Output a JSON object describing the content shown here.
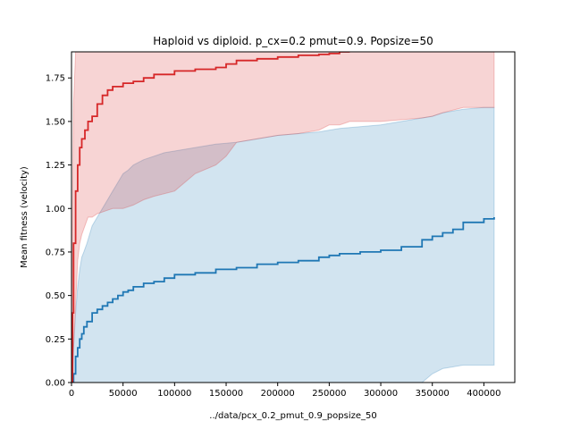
{
  "chart_data": {
    "type": "line",
    "title": "Haploid vs diploid. p_cx=0.2 pmut=0.9. Popsize=50",
    "xlabel": "../data/pcx_0.2_pmut_0.9_popsize_50",
    "ylabel": "Mean fitness (velocity)",
    "xlim": [
      0,
      430000
    ],
    "ylim": [
      0,
      1.9
    ],
    "grid": false,
    "x_ticks": [
      0,
      50000,
      100000,
      150000,
      200000,
      250000,
      300000,
      350000,
      400000
    ],
    "x_tick_labels": [
      "0",
      "50000",
      "100000",
      "150000",
      "200000",
      "250000",
      "300000",
      "350000",
      "400000"
    ],
    "y_ticks": [
      0.0,
      0.25,
      0.5,
      0.75,
      1.0,
      1.25,
      1.5,
      1.75
    ],
    "y_tick_labels": [
      "0.00",
      "0.25",
      "0.50",
      "0.75",
      "1.00",
      "1.25",
      "1.50",
      "1.75"
    ],
    "series": [
      {
        "color": "#d62728",
        "fill_color": "#d62728",
        "x": [
          0,
          1000,
          2000,
          4000,
          6000,
          8000,
          10000,
          13000,
          16000,
          20000,
          25000,
          30000,
          35000,
          40000,
          50000,
          60000,
          70000,
          80000,
          100000,
          120000,
          140000,
          150000,
          160000,
          180000,
          200000,
          220000,
          240000,
          250000,
          260000,
          270000
        ],
        "mean": [
          0.0,
          0.4,
          0.8,
          1.1,
          1.25,
          1.35,
          1.4,
          1.45,
          1.5,
          1.53,
          1.6,
          1.65,
          1.68,
          1.7,
          1.72,
          1.73,
          1.75,
          1.77,
          1.79,
          1.8,
          1.81,
          1.83,
          1.85,
          1.86,
          1.87,
          1.88,
          1.885,
          1.89,
          1.9,
          1.9
        ],
        "upper": [
          0.3,
          1.0,
          1.6,
          1.9,
          1.9,
          1.9,
          1.9,
          1.9,
          1.9,
          1.9,
          1.9,
          1.9,
          1.9,
          1.9,
          1.9,
          1.9,
          1.9,
          1.9,
          1.9,
          1.9,
          1.9,
          1.9,
          1.9,
          1.9,
          1.9,
          1.9,
          1.9,
          1.9,
          1.9,
          1.9
        ],
        "lower": [
          0.0,
          0.05,
          0.2,
          0.45,
          0.7,
          0.8,
          0.85,
          0.9,
          0.95,
          0.95,
          0.97,
          0.98,
          0.99,
          1.0,
          1.0,
          1.02,
          1.05,
          1.07,
          1.1,
          1.2,
          1.25,
          1.3,
          1.38,
          1.4,
          1.42,
          1.43,
          1.45,
          1.48,
          1.48,
          1.5
        ],
        "x_tail": [
          270000,
          300000,
          340000,
          350000,
          360000,
          380000,
          400000,
          410000
        ],
        "upper_tail": [
          1.9,
          1.9,
          1.9,
          1.9,
          1.9,
          1.9,
          1.9,
          1.9
        ],
        "lower_tail": [
          1.5,
          1.5,
          1.52,
          1.53,
          1.55,
          1.58,
          1.58,
          1.58
        ]
      },
      {
        "color": "#1f77b4",
        "fill_color": "#1f77b4",
        "x": [
          0,
          2000,
          4000,
          6000,
          8000,
          10000,
          12000,
          15000,
          20000,
          25000,
          30000,
          35000,
          40000,
          45000,
          50000,
          55000,
          60000,
          70000,
          80000,
          90000,
          100000,
          120000,
          140000,
          160000,
          180000,
          200000,
          220000,
          240000,
          250000,
          260000,
          280000,
          300000,
          320000,
          340000,
          350000,
          360000,
          370000,
          380000,
          400000,
          410000
        ],
        "mean": [
          0.0,
          0.05,
          0.15,
          0.2,
          0.25,
          0.28,
          0.32,
          0.35,
          0.4,
          0.42,
          0.44,
          0.46,
          0.48,
          0.5,
          0.52,
          0.53,
          0.55,
          0.57,
          0.58,
          0.6,
          0.62,
          0.63,
          0.65,
          0.66,
          0.68,
          0.69,
          0.7,
          0.72,
          0.73,
          0.74,
          0.75,
          0.76,
          0.78,
          0.82,
          0.84,
          0.86,
          0.88,
          0.92,
          0.94,
          0.95
        ],
        "upper": [
          0.0,
          0.2,
          0.4,
          0.55,
          0.65,
          0.72,
          0.75,
          0.8,
          0.9,
          0.95,
          1.0,
          1.05,
          1.1,
          1.15,
          1.2,
          1.22,
          1.25,
          1.28,
          1.3,
          1.32,
          1.33,
          1.35,
          1.37,
          1.38,
          1.4,
          1.42,
          1.43,
          1.44,
          1.45,
          1.46,
          1.47,
          1.48,
          1.5,
          1.52,
          1.53,
          1.55,
          1.56,
          1.57,
          1.58,
          1.58
        ],
        "lower": [
          0.0,
          0.0,
          0.0,
          0.0,
          0.0,
          0.0,
          0.0,
          0.0,
          0.0,
          0.0,
          0.0,
          0.0,
          0.0,
          0.0,
          0.0,
          0.0,
          0.0,
          0.0,
          0.0,
          0.0,
          0.0,
          0.0,
          0.0,
          0.0,
          0.0,
          0.0,
          0.0,
          0.0,
          0.0,
          0.0,
          0.0,
          0.0,
          0.0,
          0.0,
          0.05,
          0.08,
          0.09,
          0.1,
          0.1,
          0.1
        ]
      }
    ]
  }
}
